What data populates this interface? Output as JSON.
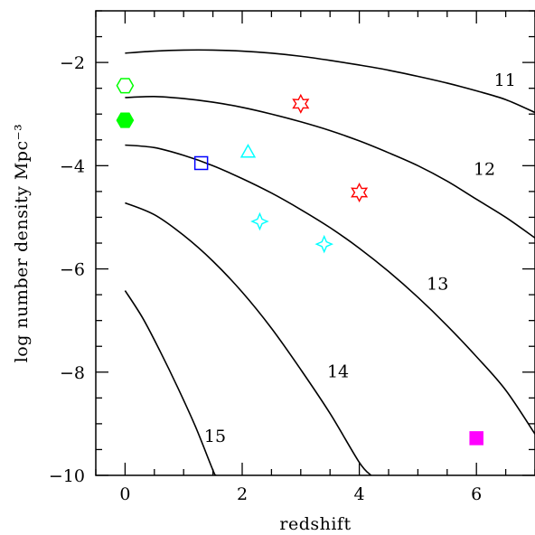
{
  "chart_data": {
    "type": "line",
    "title": "",
    "xlabel": "redshift",
    "ylabel": "log number density Mpc⁻³",
    "xlim": [
      -0.5,
      7
    ],
    "ylim": [
      -10,
      -1
    ],
    "x_ticks": [
      0,
      2,
      4,
      6
    ],
    "x_tick_labels": [
      "0",
      "2",
      "4",
      "6"
    ],
    "y_ticks": [
      -10,
      -8,
      -6,
      -4,
      -2
    ],
    "y_tick_labels": [
      "−10",
      "−8",
      "−6",
      "−4",
      "−2"
    ],
    "grid": false,
    "series": [
      {
        "name": "11",
        "x": [
          0,
          0.5,
          1,
          1.5,
          2,
          2.5,
          3,
          3.5,
          4,
          4.5,
          5,
          5.5,
          6,
          6.5,
          7
        ],
        "y": [
          -1.82,
          -1.78,
          -1.76,
          -1.76,
          -1.78,
          -1.82,
          -1.88,
          -1.96,
          -2.05,
          -2.15,
          -2.27,
          -2.4,
          -2.55,
          -2.72,
          -2.97
        ]
      },
      {
        "name": "12",
        "x": [
          0,
          0.5,
          1,
          1.5,
          2,
          2.5,
          3,
          3.5,
          4,
          4.5,
          5,
          5.5,
          6,
          6.5,
          7
        ],
        "y": [
          -2.68,
          -2.66,
          -2.7,
          -2.77,
          -2.87,
          -3.0,
          -3.15,
          -3.32,
          -3.52,
          -3.75,
          -4.0,
          -4.3,
          -4.65,
          -5.0,
          -5.4
        ]
      },
      {
        "name": "13",
        "x": [
          0,
          0.5,
          1,
          1.5,
          2,
          2.5,
          3,
          3.5,
          4,
          4.5,
          5,
          5.5,
          6,
          6.5,
          7
        ],
        "y": [
          -3.6,
          -3.65,
          -3.8,
          -4.0,
          -4.25,
          -4.53,
          -4.85,
          -5.2,
          -5.6,
          -6.05,
          -6.55,
          -7.1,
          -7.7,
          -8.35,
          -9.2
        ]
      },
      {
        "name": "14",
        "x": [
          0,
          0.5,
          1,
          1.5,
          2,
          2.5,
          3,
          3.5,
          4,
          4.2
        ],
        "y": [
          -4.72,
          -4.95,
          -5.35,
          -5.85,
          -6.45,
          -7.15,
          -7.95,
          -8.8,
          -9.75,
          -10.0
        ]
      },
      {
        "name": "15",
        "x": [
          0,
          0.3,
          0.6,
          0.9,
          1.2,
          1.5,
          1.55
        ],
        "y": [
          -6.42,
          -6.95,
          -7.6,
          -8.3,
          -9.05,
          -9.9,
          -10.0
        ]
      }
    ],
    "series_labels": [
      {
        "text": "11",
        "x": 6.3,
        "y": -2.45
      },
      {
        "text": "12",
        "x": 5.95,
        "y": -4.18
      },
      {
        "text": "13",
        "x": 5.15,
        "y": -6.4
      },
      {
        "text": "14",
        "x": 3.45,
        "y": -8.1
      },
      {
        "text": "15",
        "x": 1.35,
        "y": -9.35
      }
    ],
    "markers": [
      {
        "shape": "hexagon-open",
        "x": 0,
        "y": -2.45,
        "color": "#00ff00"
      },
      {
        "shape": "hexagon-filled",
        "x": 0,
        "y": -3.12,
        "color": "#00ff00"
      },
      {
        "shape": "square-open",
        "x": 1.3,
        "y": -3.95,
        "color": "#0000ff"
      },
      {
        "shape": "triangle-open",
        "x": 2.1,
        "y": -3.75,
        "color": "#00ffff"
      },
      {
        "shape": "star6-open",
        "x": 3.0,
        "y": -2.8,
        "color": "#ff0000"
      },
      {
        "shape": "star6-open",
        "x": 4.0,
        "y": -4.52,
        "color": "#ff0000"
      },
      {
        "shape": "star4-open",
        "x": 2.3,
        "y": -5.08,
        "color": "#00ffff"
      },
      {
        "shape": "star4-open",
        "x": 3.4,
        "y": -5.52,
        "color": "#00ffff"
      },
      {
        "shape": "square-filled",
        "x": 6.0,
        "y": -9.28,
        "color": "#ff00ff"
      }
    ]
  }
}
